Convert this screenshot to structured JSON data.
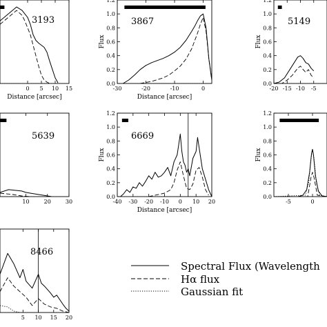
{
  "chart_data": [
    {
      "id": "3193",
      "label": "3193",
      "type": "line",
      "xlabel": "Distance [arcsec]",
      "ylabel": "",
      "xlim": [
        -10,
        15
      ],
      "ylim": [
        0,
        1.2
      ],
      "xticks": [
        0,
        5,
        10,
        15
      ],
      "yticks": [],
      "grid": false,
      "scalebar": [
        -10,
        -8.4
      ],
      "series": [
        {
          "name": "Spectral Flux (Wavelength",
          "style": "solid",
          "x": [
            -10,
            -4,
            -2,
            -1,
            0,
            1,
            2,
            3,
            4,
            5,
            6,
            7,
            8,
            9,
            10,
            11
          ],
          "y": [
            0.9,
            1.1,
            1.05,
            1.0,
            0.95,
            0.85,
            0.7,
            0.62,
            0.58,
            0.55,
            0.52,
            0.45,
            0.32,
            0.2,
            0.08,
            0.01
          ]
        },
        {
          "name": "Hα flux",
          "style": "dashed",
          "x": [
            -10,
            -4,
            -2,
            -1,
            0,
            1,
            2,
            3,
            4,
            5,
            6,
            7,
            8
          ],
          "y": [
            0.85,
            1.05,
            0.98,
            0.9,
            0.8,
            0.7,
            0.55,
            0.4,
            0.25,
            0.12,
            0.05,
            0.02,
            0.0
          ]
        },
        {
          "name": "Gaussian fit",
          "style": "dotted",
          "x": [
            -10,
            15
          ],
          "y": [
            0.0,
            0.0
          ]
        }
      ]
    },
    {
      "id": "3867",
      "label": "3867",
      "type": "line",
      "xlabel": "Distance [arcsec]",
      "ylabel": "Flux",
      "xlim": [
        -30,
        3
      ],
      "ylim": [
        0,
        1.2
      ],
      "xticks": [
        -30,
        -20,
        -10,
        0
      ],
      "yticks": [
        0.0,
        0.2,
        0.4,
        0.6,
        0.8,
        1.0,
        1.2
      ],
      "grid": false,
      "scalebar": [
        -27.5,
        0.8
      ],
      "series": [
        {
          "name": "Spectral Flux (Wavelength",
          "style": "solid",
          "x": [
            -28,
            -26,
            -24,
            -22,
            -20,
            -18,
            -16,
            -14,
            -12,
            -10,
            -8,
            -6,
            -4,
            -3,
            -2,
            -1,
            0,
            1,
            2,
            3
          ],
          "y": [
            0.0,
            0.05,
            0.12,
            0.2,
            0.26,
            0.3,
            0.33,
            0.36,
            0.4,
            0.45,
            0.52,
            0.62,
            0.75,
            0.82,
            0.9,
            0.97,
            1.0,
            0.8,
            0.35,
            0.05
          ]
        },
        {
          "name": "Hα flux",
          "style": "dashed",
          "x": [
            -22,
            -18,
            -14,
            -12,
            -10,
            -8,
            -6,
            -4,
            -2,
            -1,
            0,
            1,
            2,
            3
          ],
          "y": [
            0.0,
            0.03,
            0.08,
            0.12,
            0.18,
            0.25,
            0.35,
            0.5,
            0.72,
            0.85,
            0.95,
            0.75,
            0.35,
            0.05
          ]
        },
        {
          "name": "Gaussian fit",
          "style": "dotted",
          "x": [
            -30,
            3
          ],
          "y": [
            0.0,
            0.0
          ]
        }
      ]
    },
    {
      "id": "5149",
      "label": "5149",
      "type": "line",
      "xlabel": "",
      "ylabel": "Flux",
      "xlim": [
        -20,
        0
      ],
      "ylim": [
        0,
        1.2
      ],
      "xticks": [
        -20,
        -15,
        -10,
        -5
      ],
      "yticks": [
        0.0,
        0.2,
        0.4,
        0.6,
        0.8,
        1.0,
        1.2
      ],
      "grid": false,
      "scalebar": [
        -18.5,
        -17
      ],
      "series": [
        {
          "name": "Spectral Flux (Wavelength",
          "style": "solid",
          "x": [
            -20,
            -18,
            -16,
            -14,
            -12,
            -11,
            -10,
            -9,
            -8,
            -7,
            -6,
            -5
          ],
          "y": [
            0.0,
            0.02,
            0.08,
            0.2,
            0.32,
            0.38,
            0.4,
            0.36,
            0.3,
            0.28,
            0.22,
            0.18
          ]
        },
        {
          "name": "Hα flux",
          "style": "dashed",
          "x": [
            -20,
            -17,
            -15,
            -13,
            -11,
            -10,
            -9,
            -8,
            -7,
            -6,
            -5
          ],
          "y": [
            0.0,
            0.0,
            0.05,
            0.12,
            0.22,
            0.25,
            0.2,
            0.16,
            0.2,
            0.12,
            0.08
          ]
        },
        {
          "name": "Gaussian fit",
          "style": "dotted",
          "x": [
            -20,
            0
          ],
          "y": [
            0.0,
            0.0
          ]
        }
      ]
    },
    {
      "id": "5639",
      "label": "5639",
      "type": "line",
      "xlabel": "",
      "ylabel": "",
      "xlim": [
        -2,
        30
      ],
      "ylim": [
        0,
        1.2
      ],
      "xticks": [
        10,
        20,
        30
      ],
      "yticks": [],
      "grid": false,
      "scalebar": [
        -2,
        1
      ],
      "series": [
        {
          "name": "Spectral Flux (Wavelength",
          "style": "solid",
          "x": [
            -2,
            2,
            5,
            8,
            10,
            12,
            14,
            16,
            18,
            20,
            22
          ],
          "y": [
            0.06,
            0.1,
            0.09,
            0.08,
            0.06,
            0.05,
            0.04,
            0.03,
            0.02,
            0.01,
            0.0
          ]
        },
        {
          "name": "Hα flux",
          "style": "dashed",
          "x": [
            -2,
            4,
            8,
            12
          ],
          "y": [
            0.05,
            0.03,
            0.01,
            0.0
          ]
        },
        {
          "name": "Gaussian fit",
          "style": "dotted",
          "x": [
            -2,
            30
          ],
          "y": [
            0.0,
            0.0
          ]
        }
      ]
    },
    {
      "id": "6669",
      "label": "6669",
      "type": "line",
      "xlabel": "Distance [arcsec]",
      "ylabel": "Flux",
      "xlim": [
        -40,
        20
      ],
      "ylim": [
        0,
        1.2
      ],
      "xticks": [
        -40,
        -30,
        -20,
        -10,
        0,
        10,
        20
      ],
      "yticks": [
        0.0,
        0.2,
        0.4,
        0.6,
        0.8,
        1.0,
        1.2
      ],
      "grid": false,
      "scalebar": [
        -37,
        -33
      ],
      "vline": 5,
      "series": [
        {
          "name": "Spectral Flux (Wavelength",
          "style": "solid",
          "x": [
            -38,
            -36,
            -34,
            -32,
            -30,
            -28,
            -26,
            -24,
            -22,
            -20,
            -18,
            -16,
            -14,
            -12,
            -10,
            -8,
            -6,
            -4,
            -2,
            -1,
            0,
            1,
            2,
            3,
            4,
            5,
            6,
            8,
            10,
            11,
            12,
            13,
            14,
            16,
            18,
            20
          ],
          "y": [
            0.0,
            0.04,
            0.1,
            0.06,
            0.14,
            0.12,
            0.2,
            0.15,
            0.22,
            0.3,
            0.25,
            0.35,
            0.28,
            0.3,
            0.35,
            0.42,
            0.3,
            0.5,
            0.6,
            0.75,
            0.9,
            0.65,
            0.5,
            0.45,
            0.35,
            0.4,
            0.3,
            0.55,
            0.65,
            0.85,
            0.7,
            0.55,
            0.4,
            0.25,
            0.1,
            0.0
          ]
        },
        {
          "name": "Hα flux",
          "style": "dashed",
          "x": [
            -20,
            -10,
            -6,
            -4,
            -2,
            0,
            1,
            2,
            4,
            6,
            8,
            10,
            12,
            14,
            16,
            18
          ],
          "y": [
            0.0,
            0.05,
            0.1,
            0.2,
            0.38,
            0.5,
            0.4,
            0.3,
            0.12,
            0.1,
            0.18,
            0.38,
            0.42,
            0.28,
            0.1,
            0.02
          ]
        },
        {
          "name": "Gaussian fit",
          "style": "dotted",
          "x": [
            -40,
            20
          ],
          "y": [
            0.0,
            0.0
          ]
        }
      ]
    },
    {
      "id": "flux7",
      "label": "",
      "type": "line",
      "xlabel": "",
      "ylabel": "Flux",
      "xlim": [
        -8,
        3
      ],
      "ylim": [
        0,
        1.2
      ],
      "xticks": [
        -5,
        0
      ],
      "yticks": [
        0.0,
        0.2,
        0.4,
        0.6,
        0.8,
        1.0,
        1.2
      ],
      "grid": false,
      "scalebar": [
        -6.8,
        1.3
      ],
      "series": [
        {
          "name": "Spectral Flux (Wavelength",
          "style": "solid",
          "x": [
            -8,
            -3,
            -2,
            -1.2,
            -0.6,
            -0.2,
            0,
            0.2,
            0.6,
            1.2,
            2,
            3
          ],
          "y": [
            0.0,
            0.0,
            0.02,
            0.1,
            0.35,
            0.62,
            0.68,
            0.6,
            0.3,
            0.08,
            0.01,
            0.0
          ]
        },
        {
          "name": "Hα flux",
          "style": "dashed",
          "x": [
            -8,
            -1,
            -0.3,
            0,
            0.3,
            1,
            3
          ],
          "y": [
            0.0,
            0.0,
            0.28,
            0.35,
            0.28,
            0.02,
            0.0
          ]
        },
        {
          "name": "Gaussian fit",
          "style": "dotted",
          "x": [
            -8,
            -1.5,
            -0.8,
            -0.3,
            0,
            0.3,
            0.8,
            1.5,
            3
          ],
          "y": [
            0.0,
            0.02,
            0.2,
            0.55,
            0.68,
            0.55,
            0.2,
            0.02,
            0.0
          ]
        }
      ]
    },
    {
      "id": "8466",
      "label": "8466",
      "type": "line",
      "xlabel": "",
      "ylabel": "",
      "xlim": [
        -2.5,
        20
      ],
      "ylim": [
        0,
        1.2
      ],
      "xticks": [
        5,
        10,
        15,
        20
      ],
      "yticks": [],
      "grid": false,
      "vline": 10,
      "series": [
        {
          "name": "Spectral Flux (Wavelength",
          "style": "solid",
          "x": [
            -2.5,
            0,
            2,
            4,
            5,
            6,
            8,
            10,
            11,
            12,
            14,
            15,
            16,
            18,
            19,
            20
          ],
          "y": [
            0.55,
            0.85,
            0.7,
            0.5,
            0.62,
            0.45,
            0.35,
            0.55,
            0.42,
            0.38,
            0.28,
            0.22,
            0.25,
            0.12,
            0.06,
            0.02
          ]
        },
        {
          "name": "Hα flux",
          "style": "dashed",
          "x": [
            -2.5,
            0,
            2,
            4,
            6,
            8,
            10,
            12,
            14,
            16,
            18,
            20
          ],
          "y": [
            0.3,
            0.5,
            0.38,
            0.3,
            0.22,
            0.1,
            0.2,
            0.12,
            0.08,
            0.06,
            0.02,
            0.0
          ]
        },
        {
          "name": "Gaussian fit",
          "style": "dotted",
          "x": [
            -2.5,
            0,
            1,
            2,
            3,
            4,
            20
          ],
          "y": [
            0.1,
            0.08,
            0.05,
            0.02,
            0.01,
            0.0,
            0.0
          ]
        }
      ]
    }
  ],
  "legend": {
    "items": [
      {
        "label": "Spectral Flux (Wavelength",
        "style": "solid"
      },
      {
        "label": "Hα flux",
        "style": "dashed"
      },
      {
        "label": "Gaussian fit",
        "style": "dotted"
      }
    ]
  }
}
